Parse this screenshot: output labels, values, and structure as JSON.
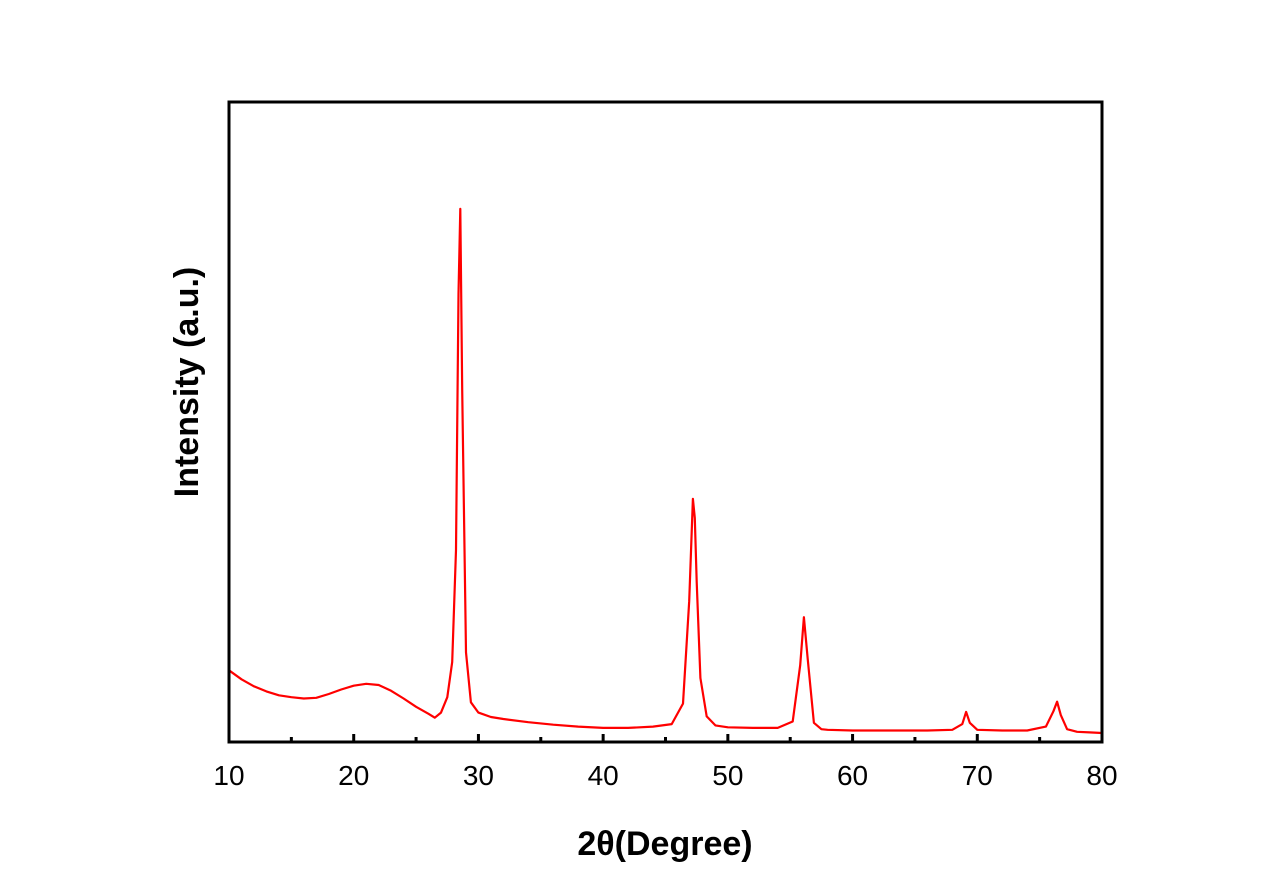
{
  "chart_data": {
    "type": "line",
    "title": "",
    "xlabel": "2θ(Degree)",
    "ylabel": "Intensity (a.u.)",
    "xlim": [
      10,
      80
    ],
    "ylim": [
      0,
      100
    ],
    "x_ticks_major": [
      10,
      20,
      30,
      40,
      50,
      60,
      70,
      80
    ],
    "x_ticks_minor": [
      15,
      25,
      35,
      45,
      55,
      65,
      75
    ],
    "y_tick_labels": "none",
    "grid": false,
    "legend": "none",
    "line_color": "#ff0000",
    "series": [
      {
        "x": [
          10.0,
          11.0,
          12.0,
          13.0,
          14.0,
          15.0,
          16.0,
          17.0,
          18.0,
          19.0,
          20.0,
          21.0,
          22.0,
          23.0,
          24.0,
          25.0,
          26.0,
          26.5,
          27.0,
          27.5,
          27.9,
          28.2,
          28.4,
          28.55,
          28.7,
          29.0,
          29.4,
          30.0,
          31.0,
          32.0,
          34.0,
          36.0,
          38.0,
          40.0,
          42.0,
          44.0,
          45.5,
          46.4,
          46.9,
          47.2,
          47.35,
          47.5,
          47.8,
          48.3,
          49.0,
          50.0,
          52.0,
          54.0,
          55.2,
          55.8,
          56.1,
          56.4,
          56.9,
          57.5,
          58.0,
          60.0,
          62.0,
          64.0,
          66.0,
          68.0,
          68.8,
          69.1,
          69.4,
          70.0,
          72.0,
          74.0,
          75.5,
          76.1,
          76.4,
          76.7,
          77.2,
          78.0,
          79.0,
          80.0
        ],
        "y": [
          11.2,
          9.8,
          8.7,
          7.9,
          7.3,
          7.0,
          6.8,
          6.9,
          7.5,
          8.2,
          8.8,
          9.1,
          8.9,
          8.0,
          6.8,
          5.5,
          4.4,
          3.8,
          4.6,
          7.0,
          12.5,
          30.0,
          70.0,
          83.3,
          55.0,
          14.0,
          6.2,
          4.6,
          3.9,
          3.6,
          3.1,
          2.7,
          2.4,
          2.2,
          2.2,
          2.4,
          2.8,
          6.0,
          22.0,
          38.0,
          35.0,
          25.0,
          10.0,
          4.0,
          2.6,
          2.3,
          2.2,
          2.2,
          3.2,
          12.0,
          19.5,
          13.0,
          3.0,
          2.0,
          1.9,
          1.8,
          1.8,
          1.8,
          1.8,
          1.9,
          2.8,
          4.7,
          3.0,
          1.9,
          1.8,
          1.8,
          2.4,
          4.8,
          6.3,
          4.2,
          2.0,
          1.6,
          1.5,
          1.4
        ]
      }
    ]
  }
}
